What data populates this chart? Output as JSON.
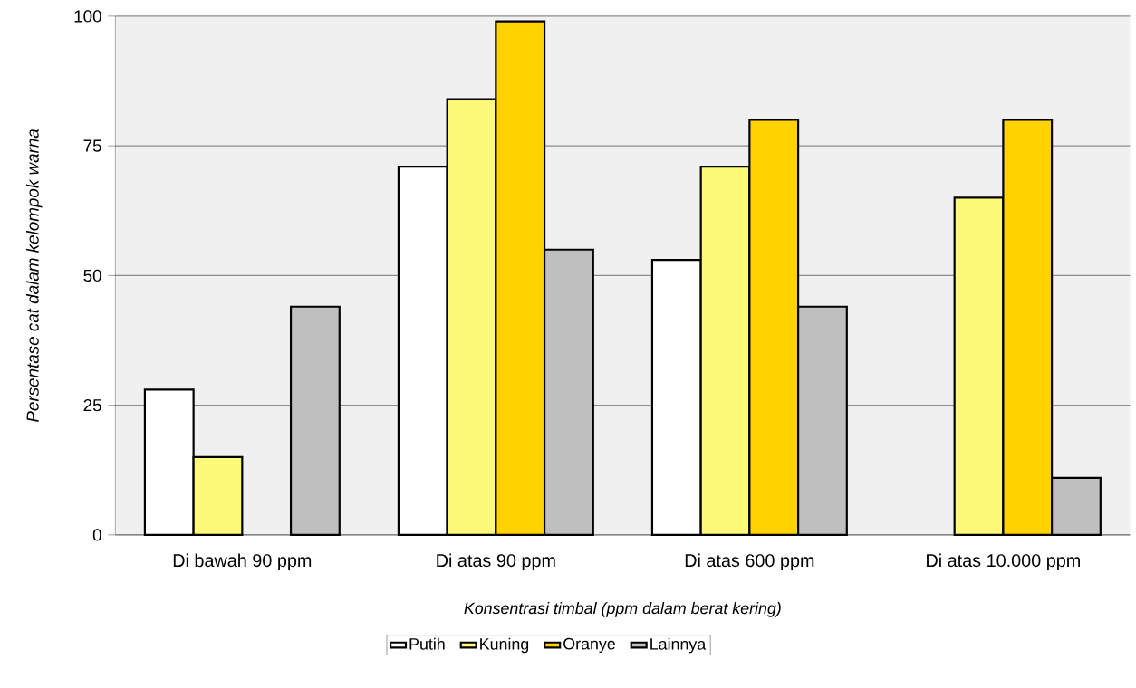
{
  "chart_data": {
    "type": "bar",
    "categories": [
      "Di bawah 90 ppm",
      "Di atas 90 ppm",
      "Di atas 600 ppm",
      "Di atas 10.000 ppm"
    ],
    "xlabel": "Konsentrasi timbal (ppm dalam berat kering)",
    "ylabel": "Persentase cat dalam kelompok warna",
    "ylim": [
      0,
      100
    ],
    "yticks": [
      0,
      25,
      50,
      75,
      100
    ],
    "grid": "y",
    "legend": "bottom",
    "series": [
      {
        "name": "Putih",
        "color": "#ffffff",
        "values": [
          28,
          71,
          53,
          null
        ]
      },
      {
        "name": "Kuning",
        "color": "#fff97a",
        "values": [
          15,
          84,
          71,
          65
        ]
      },
      {
        "name": "Oranye",
        "color": "#ffd200",
        "values": [
          null,
          99,
          80,
          80
        ]
      },
      {
        "name": "Lainnya",
        "color": "#bfbfbf",
        "values": [
          44,
          55,
          44,
          11
        ]
      }
    ]
  }
}
